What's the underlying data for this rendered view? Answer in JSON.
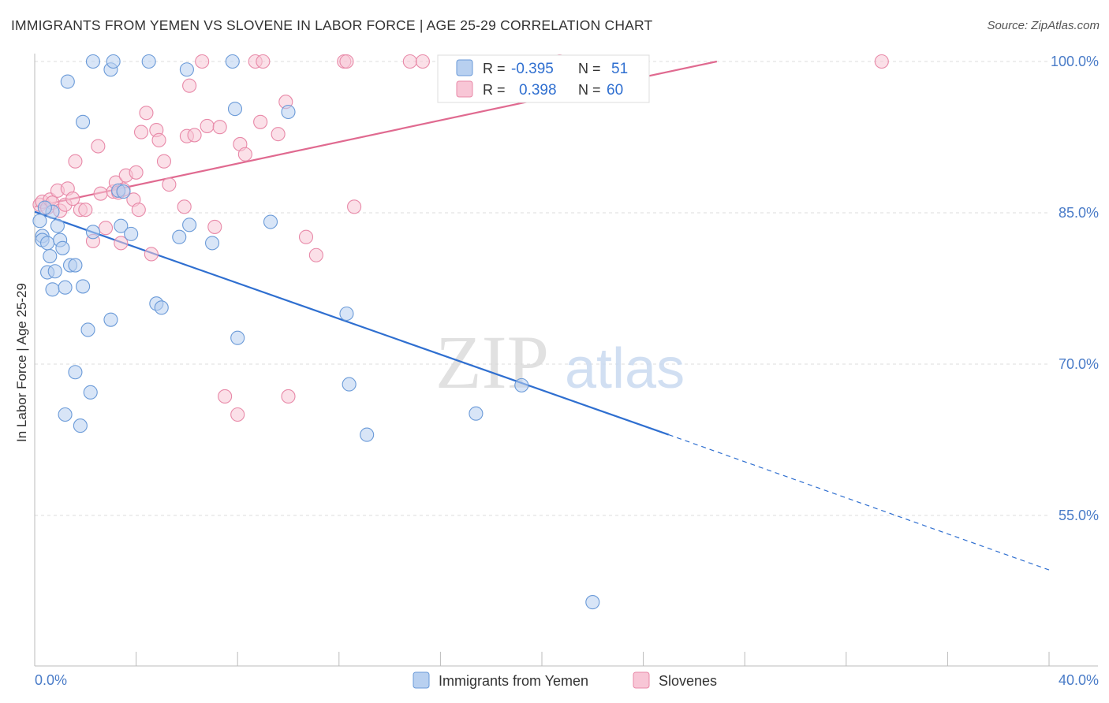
{
  "title": "IMMIGRANTS FROM YEMEN VS SLOVENE IN LABOR FORCE | AGE 25-29 CORRELATION CHART",
  "source": "Source: ZipAtlas.com",
  "watermark": {
    "zip": "ZIP",
    "atlas": "atlas"
  },
  "colors": {
    "blue_fill": "#b8d0f0",
    "blue_stroke": "#6a9ad8",
    "blue_line": "#2f6fd0",
    "pink_fill": "#f8c6d6",
    "pink_stroke": "#e889a8",
    "pink_line": "#e06a90",
    "tick_label": "#4a7cc8",
    "grid": "#dddddd"
  },
  "chart_data": {
    "type": "scatter",
    "title": "IMMIGRANTS FROM YEMEN VS SLOVENE IN LABOR FORCE | AGE 25-29 CORRELATION CHART",
    "xlabel": "",
    "ylabel": "In Labor Force | Age 25-29",
    "xlim": [
      0,
      40
    ],
    "ylim": [
      43,
      101.5
    ],
    "x_tick_labels": [
      "0.0%",
      "40.0%"
    ],
    "y_ticks": [
      55,
      70,
      85,
      100
    ],
    "y_tick_labels": [
      "55.0%",
      "70.0%",
      "85.0%",
      "100.0%"
    ],
    "grid": true,
    "legend_position": "top-center",
    "legend": [
      {
        "r_label": "R =",
        "r_value": "-0.395",
        "n_label": "N =",
        "n_value": "51"
      },
      {
        "r_label": "R =",
        "r_value": "0.398",
        "n_label": "N =",
        "n_value": "60"
      }
    ],
    "series": [
      {
        "name": "Immigrants from Yemen",
        "color": "#b8d0f0",
        "trend": {
          "x0": 0,
          "y0": 85.1,
          "x1": 25.0,
          "y1": 63.0,
          "dash_to_x": 40,
          "dash_to_y": 49.6
        },
        "points": [
          [
            0.2,
            84.2
          ],
          [
            0.3,
            82.7
          ],
          [
            0.3,
            82.3
          ],
          [
            0.5,
            79.1
          ],
          [
            0.5,
            82.0
          ],
          [
            0.6,
            80.7
          ],
          [
            0.7,
            85.1
          ],
          [
            0.7,
            77.4
          ],
          [
            0.8,
            79.2
          ],
          [
            0.9,
            83.7
          ],
          [
            1.0,
            82.3
          ],
          [
            1.1,
            81.5
          ],
          [
            1.2,
            77.6
          ],
          [
            1.3,
            98.0
          ],
          [
            1.4,
            79.8
          ],
          [
            1.6,
            69.2
          ],
          [
            1.6,
            79.8
          ],
          [
            1.8,
            63.9
          ],
          [
            1.9,
            94.0
          ],
          [
            1.9,
            77.7
          ],
          [
            2.1,
            73.4
          ],
          [
            2.2,
            67.2
          ],
          [
            2.3,
            83.1
          ],
          [
            2.3,
            100.0
          ],
          [
            3.0,
            74.4
          ],
          [
            3.0,
            99.2
          ],
          [
            3.1,
            100.0
          ],
          [
            3.3,
            87.2
          ],
          [
            3.4,
            83.7
          ],
          [
            3.8,
            82.9
          ],
          [
            4.5,
            100.0
          ],
          [
            4.8,
            76.0
          ],
          [
            5.0,
            75.6
          ],
          [
            5.7,
            82.6
          ],
          [
            6.0,
            99.2
          ],
          [
            6.1,
            83.8
          ],
          [
            7.0,
            82.0
          ],
          [
            7.8,
            100.0
          ],
          [
            7.9,
            95.3
          ],
          [
            8.0,
            72.6
          ],
          [
            9.3,
            84.1
          ],
          [
            10.0,
            95.0
          ],
          [
            12.3,
            75.0
          ],
          [
            12.4,
            68.0
          ],
          [
            13.1,
            63.0
          ],
          [
            17.4,
            65.1
          ],
          [
            19.2,
            67.9
          ],
          [
            22.0,
            46.4
          ],
          [
            1.2,
            65.0
          ],
          [
            0.4,
            85.5
          ],
          [
            3.5,
            87.1
          ]
        ]
      },
      {
        "name": "Slovenes",
        "color": "#f8c6d6",
        "trend": {
          "x0": 0,
          "y0": 85.6,
          "x1": 26.9,
          "y1": 100.0
        },
        "points": [
          [
            0.2,
            85.8
          ],
          [
            0.3,
            86.1
          ],
          [
            0.5,
            85.5
          ],
          [
            0.6,
            86.3
          ],
          [
            0.7,
            86.0
          ],
          [
            0.9,
            87.2
          ],
          [
            1.0,
            85.2
          ],
          [
            1.2,
            85.8
          ],
          [
            1.3,
            87.4
          ],
          [
            1.5,
            86.4
          ],
          [
            1.6,
            90.1
          ],
          [
            1.8,
            85.3
          ],
          [
            2.0,
            85.3
          ],
          [
            2.3,
            82.2
          ],
          [
            2.5,
            91.6
          ],
          [
            2.6,
            86.9
          ],
          [
            2.8,
            83.5
          ],
          [
            3.1,
            87.1
          ],
          [
            3.2,
            88.0
          ],
          [
            3.3,
            87.0
          ],
          [
            3.4,
            82.0
          ],
          [
            3.5,
            87.3
          ],
          [
            3.6,
            88.7
          ],
          [
            3.9,
            86.3
          ],
          [
            4.0,
            89.0
          ],
          [
            4.1,
            85.3
          ],
          [
            4.2,
            93.0
          ],
          [
            4.4,
            94.9
          ],
          [
            4.6,
            80.9
          ],
          [
            4.8,
            93.2
          ],
          [
            4.9,
            92.2
          ],
          [
            5.1,
            90.1
          ],
          [
            5.3,
            87.8
          ],
          [
            5.9,
            85.6
          ],
          [
            6.0,
            92.6
          ],
          [
            6.1,
            97.6
          ],
          [
            6.3,
            92.7
          ],
          [
            6.6,
            100.0
          ],
          [
            6.8,
            93.6
          ],
          [
            7.1,
            83.6
          ],
          [
            7.3,
            93.5
          ],
          [
            7.5,
            66.8
          ],
          [
            8.0,
            65.0
          ],
          [
            8.1,
            91.8
          ],
          [
            8.3,
            90.8
          ],
          [
            8.7,
            100.0
          ],
          [
            8.9,
            94.0
          ],
          [
            9.0,
            100.0
          ],
          [
            9.6,
            92.8
          ],
          [
            9.9,
            96.0
          ],
          [
            10.0,
            66.8
          ],
          [
            10.7,
            82.6
          ],
          [
            11.1,
            80.8
          ],
          [
            12.2,
            100.0
          ],
          [
            12.3,
            100.0
          ],
          [
            12.6,
            85.6
          ],
          [
            14.8,
            100.0
          ],
          [
            15.3,
            100.0
          ],
          [
            20.7,
            100.0
          ],
          [
            33.4,
            100.0
          ]
        ]
      }
    ]
  }
}
